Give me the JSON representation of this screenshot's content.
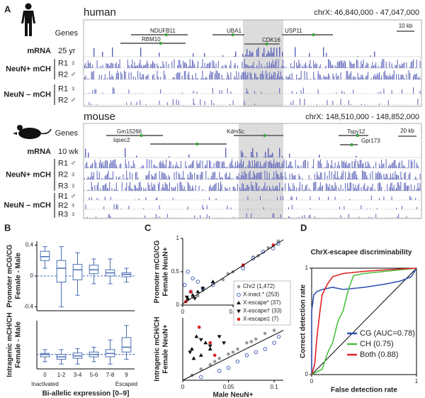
{
  "panels": [
    "A",
    "B",
    "C",
    "D"
  ],
  "genome_browser": {
    "track_color": "#5a62b8",
    "human": {
      "name": "human",
      "region": "chrX: 46,840,000 - 47,047,000",
      "scale": "10 kb",
      "genes_label": "Genes",
      "genes": [
        "NDUFB11",
        "RBM10",
        "UBA1",
        "CDK16",
        "USP11"
      ],
      "mrna_label": "mRNA",
      "mrna_age": "25 yr",
      "groups": [
        {
          "label": "NeuN+ mCH",
          "rows": [
            "R1 ♀",
            "R2 ♂"
          ]
        },
        {
          "label": "NeuN – mCH",
          "rows": [
            "R1 ♀",
            "R2 ♂"
          ]
        }
      ]
    },
    "mouse": {
      "name": "mouse",
      "region": "chrX: 148,510,000 - 148,852,000",
      "scale": "20 kb",
      "genes_label": "Genes",
      "genes": [
        "Gm15266",
        "Iqsec2",
        "Kdm5c",
        "Tspy12",
        "Gpr173"
      ],
      "mrna_label": "mRNA",
      "mrna_age": "10 wk",
      "groups": [
        {
          "label": "NeuN+ mCH",
          "rows": [
            "R1 ♂",
            "R2 ♀",
            "R3 ♀"
          ]
        },
        {
          "label": "NeuN – mCH",
          "rows": [
            "R1 ♂",
            "R2 ♀",
            "R3 ♀"
          ]
        }
      ]
    }
  },
  "chart_data": [
    {
      "type": "box",
      "ylabel": [
        "Promoter mCG/CG",
        "Female - Male"
      ],
      "color": "#4a6fb5",
      "ylim": [
        -0.45,
        0.45
      ],
      "yticks": [
        0.4,
        0,
        -0.4
      ],
      "reference_line": 0,
      "boxes": [
        {
          "low": 0.1,
          "q1": 0.2,
          "median": 0.25,
          "q3": 0.32,
          "high": 0.38
        },
        {
          "low": -0.4,
          "q1": -0.08,
          "median": 0.1,
          "q3": 0.2,
          "high": 0.38
        },
        {
          "low": -0.25,
          "q1": -0.05,
          "median": 0.08,
          "q3": 0.15,
          "high": 0.3
        },
        {
          "low": -0.1,
          "q1": 0.03,
          "median": 0.08,
          "q3": 0.14,
          "high": 0.22
        },
        {
          "low": -0.1,
          "q1": 0.0,
          "median": 0.04,
          "q3": 0.08,
          "high": 0.22
        },
        {
          "low": -0.08,
          "q1": -0.01,
          "median": 0.02,
          "q3": 0.04,
          "high": 0.1
        }
      ]
    },
    {
      "type": "box",
      "ylabel": [
        "Intragenic mCH/CH",
        "Female - Male"
      ],
      "xlabel": "Bi-allelic expression [0–9]",
      "annotations": [
        "Inactivated",
        "Escaped"
      ],
      "color": "#4a6fb5",
      "ylim": [
        -0.03,
        0.07
      ],
      "reference_line": 0,
      "categories": [
        "0",
        "1-2",
        "3-4",
        "5-6",
        "7-8",
        "9"
      ],
      "boxes": [
        {
          "low": -0.015,
          "q1": -0.005,
          "median": 0,
          "q3": 0.002,
          "high": 0.01
        },
        {
          "low": -0.02,
          "q1": -0.01,
          "median": -0.005,
          "q3": 0,
          "high": 0.01
        },
        {
          "low": -0.02,
          "q1": -0.008,
          "median": -0.003,
          "q3": 0.003,
          "high": 0.012
        },
        {
          "low": -0.015,
          "q1": -0.005,
          "median": 0,
          "q3": 0.005,
          "high": 0.015
        },
        {
          "low": -0.02,
          "q1": -0.005,
          "median": 0.002,
          "q3": 0.01,
          "high": 0.03
        },
        {
          "low": -0.01,
          "q1": 0.005,
          "median": 0.015,
          "q3": 0.035,
          "high": 0.06
        }
      ]
    },
    {
      "type": "scatter",
      "ylabel": [
        "Promoter mCG/CG",
        "Female NeuN+"
      ],
      "xlim": [
        0,
        1
      ],
      "ylim": [
        0,
        1
      ],
      "xticks": [
        0,
        0.5
      ],
      "yticks": [
        0,
        0.5,
        1
      ],
      "fit": {
        "x": [
          0,
          1
        ],
        "y": [
          0.02,
          0.98
        ]
      },
      "series": [
        {
          "name": "Chr2 (1,472)",
          "color": "#999999",
          "marker": "circle-filled",
          "x": [
            0.05,
            0.1,
            0.15,
            0.2,
            0.3,
            0.4,
            0.45,
            0.5,
            0.6,
            0.7,
            0.75,
            0.8,
            0.85,
            0.9,
            0.95
          ],
          "y": [
            0.08,
            0.12,
            0.14,
            0.22,
            0.3,
            0.38,
            0.47,
            0.5,
            0.58,
            0.72,
            0.74,
            0.8,
            0.86,
            0.9,
            0.96
          ]
        },
        {
          "name": "X-inact.* (253)",
          "color": "#3a56b0",
          "marker": "circle-open",
          "x": [
            0.02,
            0.05,
            0.08,
            0.1,
            0.15,
            0.2,
            0.3,
            0.6,
            0.7,
            0.8,
            0.9,
            0.95
          ],
          "y": [
            0.3,
            0.5,
            0.2,
            0.4,
            0.35,
            0.25,
            0.3,
            0.55,
            0.7,
            0.8,
            0.85,
            0.92
          ]
        },
        {
          "name": "X-escape* (37)",
          "color": "#111111",
          "marker": "triangle-up",
          "x": [
            0.05,
            0.1,
            0.15,
            0.3
          ],
          "y": [
            0.1,
            0.15,
            0.2,
            0.35
          ]
        },
        {
          "name": "X-escape† (33)",
          "color": "#111111",
          "marker": "triangle-down",
          "x": [
            0.04,
            0.12,
            0.2
          ],
          "y": [
            0.12,
            0.1,
            0.25
          ]
        },
        {
          "name": "X-escape‡ (7)",
          "color": "#e02020",
          "marker": "circle-filled",
          "x": [
            0.03,
            0.08,
            0.6,
            0.9
          ],
          "y": [
            0.05,
            0.2,
            0.6,
            0.9
          ]
        }
      ]
    },
    {
      "type": "scatter",
      "xlabel": "Male NeuN+",
      "ylabel": [
        "Intragenic mCH/CH",
        "Female NeuN+"
      ],
      "xlim": [
        0,
        0.11
      ],
      "ylim": [
        0,
        0.1
      ],
      "xticks": [
        0,
        0.05,
        0.1
      ],
      "fit": {
        "x": [
          0,
          0.11
        ],
        "y": [
          0,
          0.08
        ]
      },
      "series": [
        {
          "color": "#999999",
          "marker": "circle-filled",
          "x": [
            0.01,
            0.02,
            0.03,
            0.035,
            0.04,
            0.05,
            0.055,
            0.06,
            0.07,
            0.075,
            0.08,
            0.09,
            0.1
          ],
          "y": [
            0.008,
            0.018,
            0.025,
            0.03,
            0.035,
            0.042,
            0.045,
            0.05,
            0.06,
            0.062,
            0.066,
            0.075,
            0.08
          ]
        },
        {
          "color": "#3a56b0",
          "marker": "circle-open",
          "x": [
            0.02,
            0.04,
            0.05,
            0.06,
            0.07,
            0.08,
            0.09,
            0.1,
            0.105
          ],
          "y": [
            0.005,
            0.015,
            0.02,
            0.03,
            0.04,
            0.045,
            0.05,
            0.06,
            0.07
          ]
        },
        {
          "color": "#111111",
          "marker": "triangle-up",
          "x": [
            0.01,
            0.012,
            0.015,
            0.02,
            0.025,
            0.03
          ],
          "y": [
            0.05,
            0.035,
            0.07,
            0.04,
            0.06,
            0.05
          ]
        },
        {
          "color": "#111111",
          "marker": "triangle-down",
          "x": [
            0.008,
            0.02,
            0.03,
            0.04,
            0.045
          ],
          "y": [
            0.045,
            0.065,
            0.055,
            0.07,
            0.06
          ]
        },
        {
          "color": "#e02020",
          "marker": "circle-filled",
          "x": [
            0.018,
            0.03,
            0.035
          ],
          "y": [
            0.085,
            0.06,
            0.04
          ]
        }
      ]
    },
    {
      "type": "line",
      "title": "ChrX-escapee discriminability",
      "xlabel": "False detection rate",
      "ylabel": "Correct detection rate",
      "xlim": [
        0,
        1
      ],
      "ylim": [
        0,
        1
      ],
      "xticks": [
        0,
        1
      ],
      "yticks": [
        0,
        1
      ],
      "series": [
        {
          "name": "CG (AUC=0.78)",
          "color": "#2f4fb0",
          "x": [
            0,
            0,
            0.02,
            0.05,
            0.1,
            0.2,
            0.3,
            0.5,
            0.7,
            0.85,
            0.95,
            1
          ],
          "y": [
            0,
            0.6,
            0.75,
            0.78,
            0.8,
            0.82,
            0.8,
            0.82,
            0.85,
            0.88,
            0.92,
            1
          ]
        },
        {
          "name": "CH (0.75)",
          "color": "#4cc040",
          "x": [
            0,
            0.1,
            0.15,
            0.2,
            0.25,
            0.3,
            0.35,
            0.4,
            0.5,
            0.7,
            1
          ],
          "y": [
            0,
            0.05,
            0.2,
            0.3,
            0.5,
            0.6,
            0.8,
            0.93,
            0.95,
            0.97,
            1
          ]
        },
        {
          "name": "Both (0.88)",
          "color": "#e02020",
          "x": [
            0,
            0.03,
            0.05,
            0.08,
            0.1,
            0.15,
            0.2,
            0.3,
            0.5,
            0.8,
            1
          ],
          "y": [
            0,
            0.1,
            0.35,
            0.6,
            0.75,
            0.85,
            0.92,
            0.95,
            0.97,
            0.99,
            1
          ]
        }
      ]
    }
  ]
}
